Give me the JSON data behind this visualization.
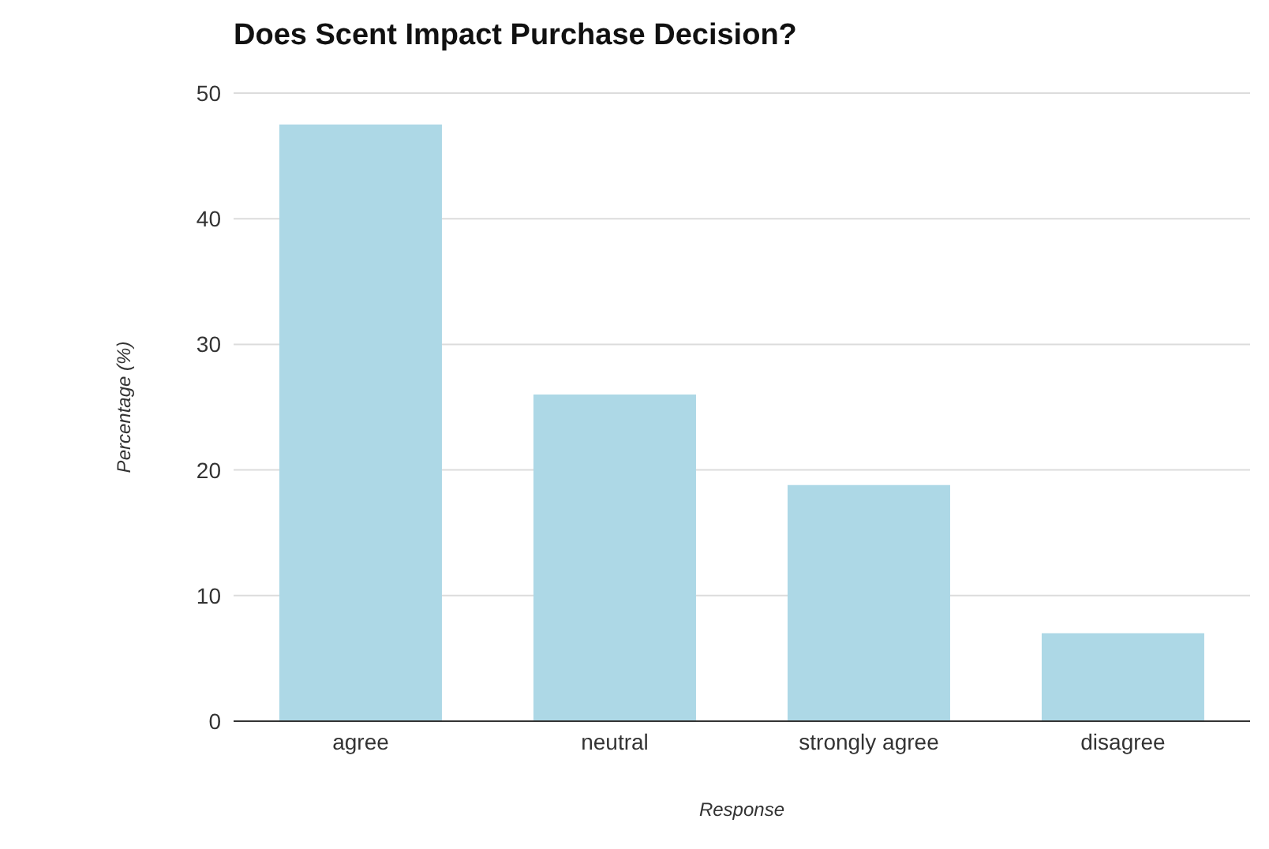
{
  "chart_data": {
    "type": "bar",
    "title": "Does Scent Impact Purchase Decision?",
    "xlabel": "Response",
    "ylabel": "Percentage (%)",
    "categories": [
      "agree",
      "neutral",
      "strongly agree",
      "disagree"
    ],
    "values": [
      47.5,
      26,
      18.8,
      7
    ],
    "color": "#add8e6",
    "ylim": [
      0,
      50
    ],
    "yticks": [
      0,
      10,
      20,
      30,
      40,
      50
    ],
    "grid": "y",
    "legend": false
  }
}
